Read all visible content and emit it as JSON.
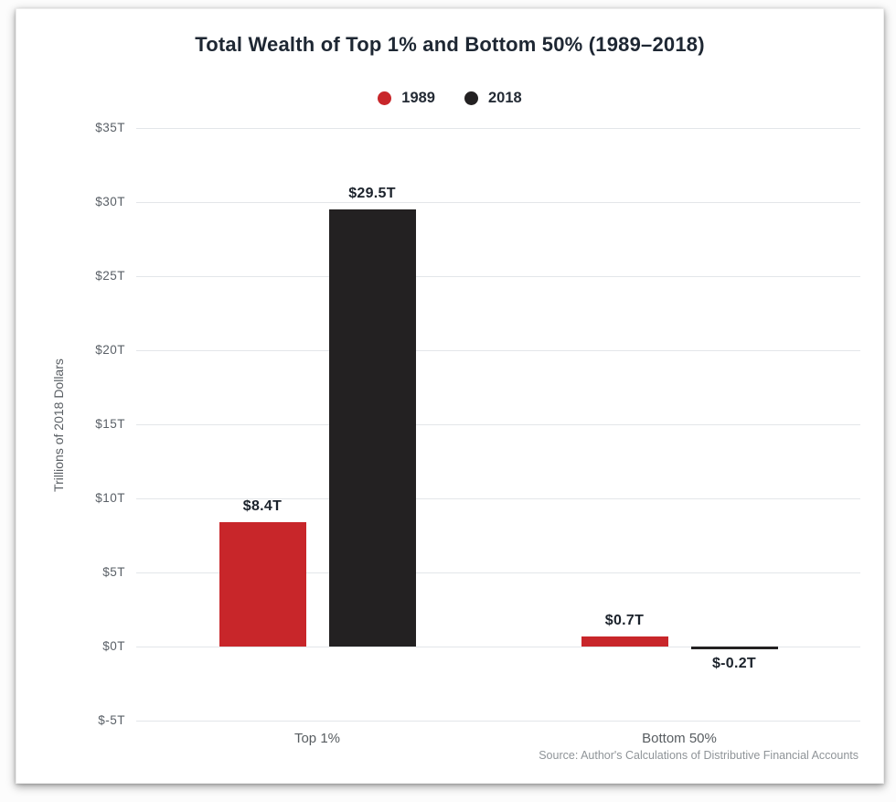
{
  "page": {
    "background": "#fcfcfc",
    "card_background": "#ffffff"
  },
  "chart_data": {
    "type": "bar",
    "title": "Total Wealth of Top 1% and Bottom 50% (1989–2018)",
    "categories": [
      "Top 1%",
      "Bottom 50%"
    ],
    "series": [
      {
        "name": "1989",
        "color": "#c8262a",
        "values": [
          8.4,
          0.7
        ],
        "value_labels": [
          "$8.4T",
          "$0.7T"
        ]
      },
      {
        "name": "2018",
        "color": "#232122",
        "values": [
          29.5,
          -0.2
        ],
        "value_labels": [
          "$29.5T",
          "$-0.2T"
        ]
      }
    ],
    "xlabel": "",
    "ylabel": "Trillions of 2018 Dollars",
    "ylim": [
      -5,
      35
    ],
    "yticks": [
      -5,
      0,
      5,
      10,
      15,
      20,
      25,
      30,
      35
    ],
    "ytick_labels": [
      "$-5T",
      "$0T",
      "$5T",
      "$10T",
      "$15T",
      "$20T",
      "$25T",
      "$30T",
      "$35T"
    ],
    "grid": true,
    "gridline_color": "#e3e6e9",
    "legend_position": "top-center",
    "source": "Source: Author's Calculations of Distributive Financial Accounts"
  }
}
